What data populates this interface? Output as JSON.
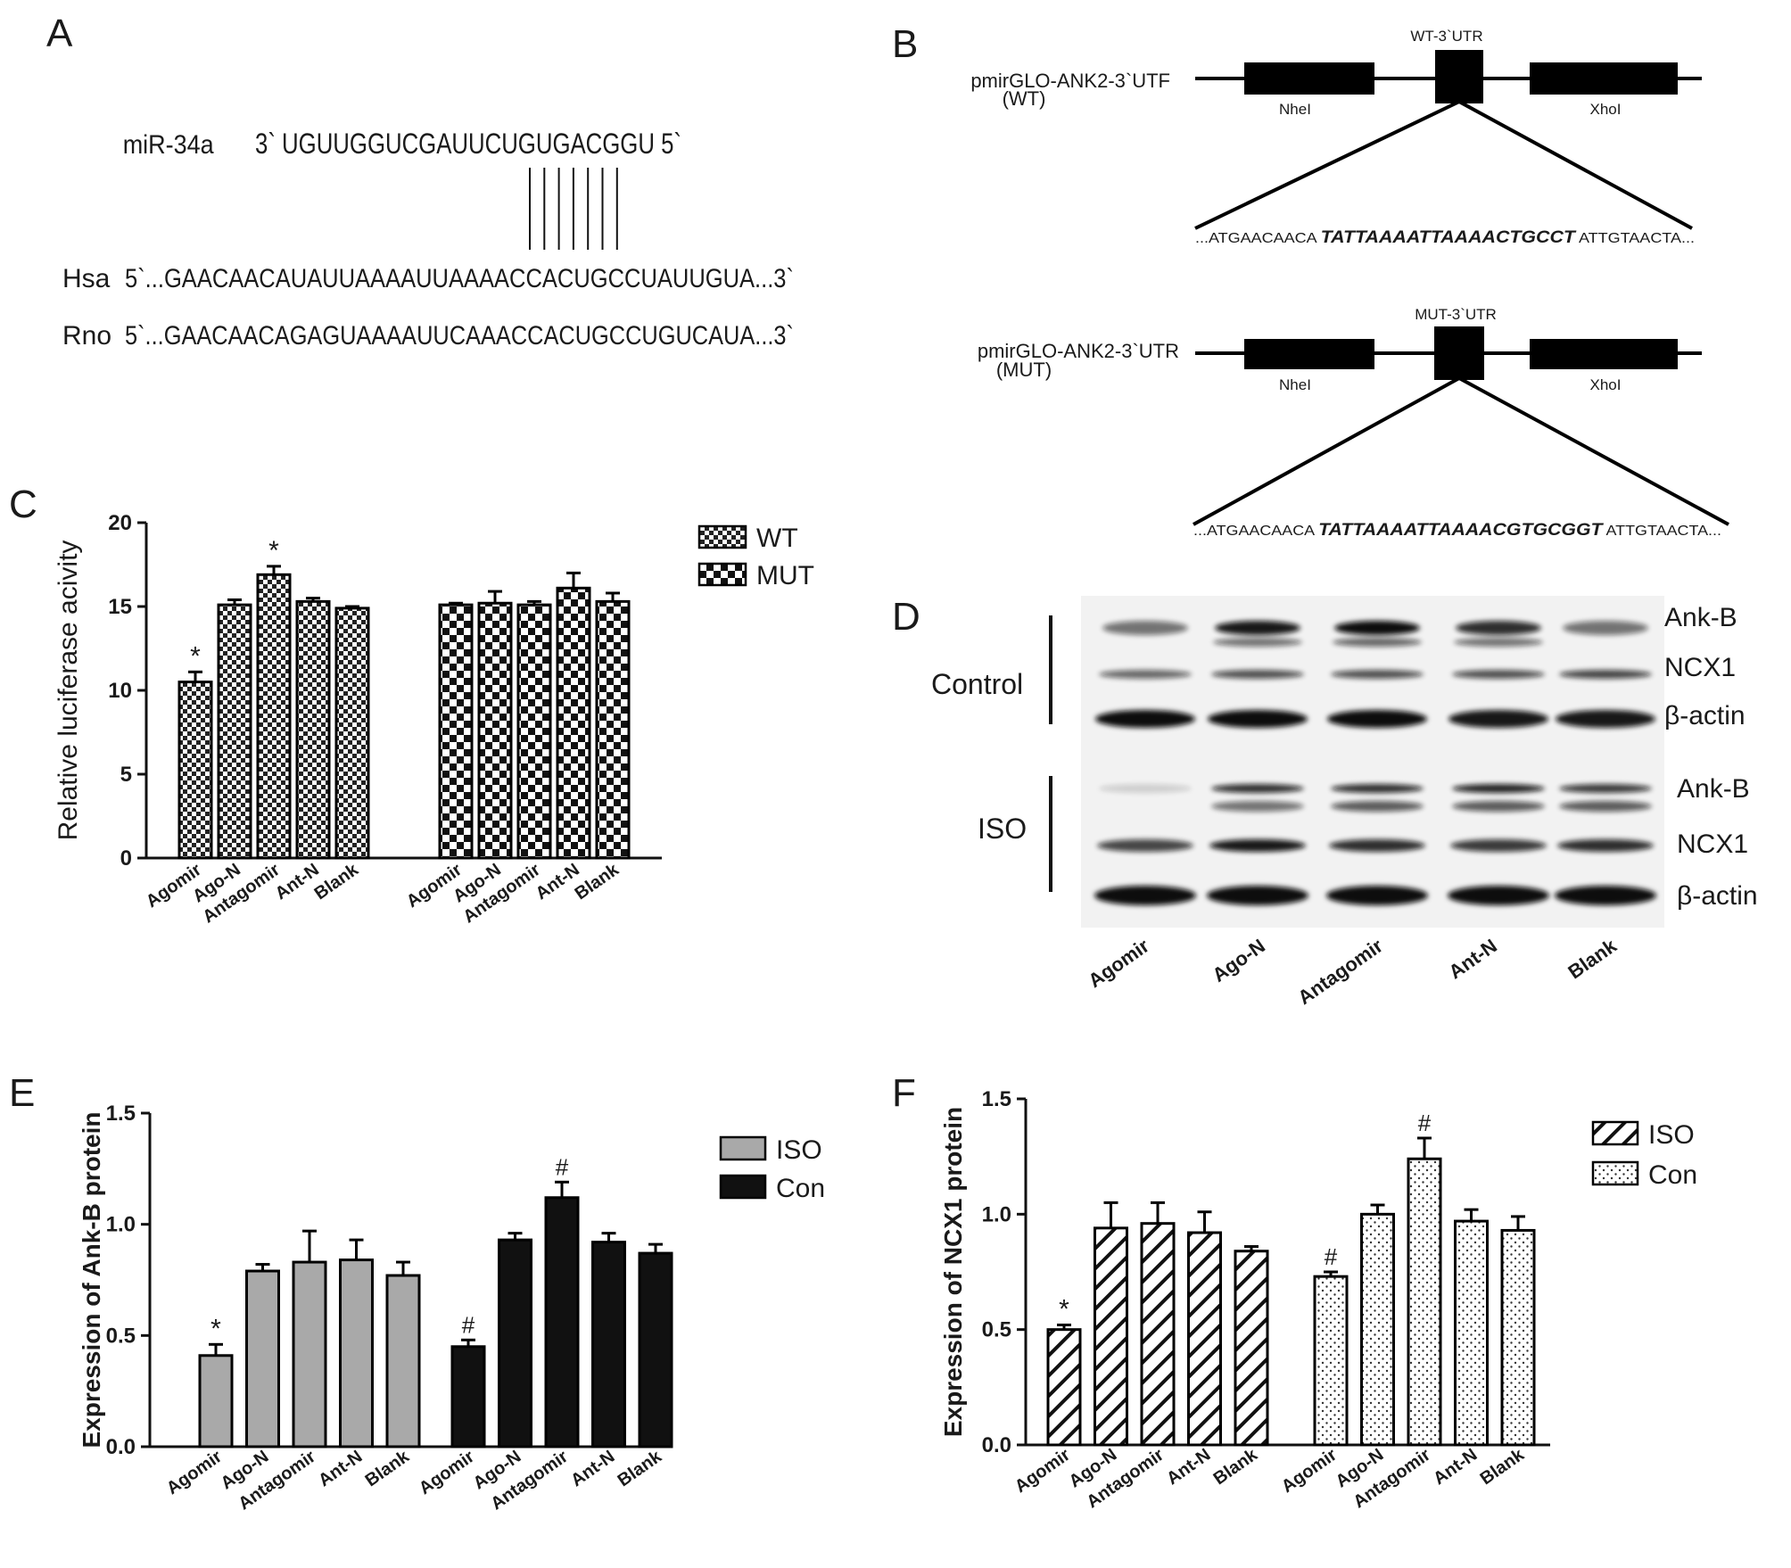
{
  "panel_labels": {
    "a": "A",
    "b": "B",
    "c": "C",
    "d": "D",
    "e": "E",
    "f": "F"
  },
  "panel_a": {
    "mir_label": "miR-34a",
    "mir_seq": "3` UGUUGGUCGAUUCUGUGACGGU 5`",
    "hsa_label": "Hsa",
    "hsa_seq": "5`...GAACAACAUAUUAAAAUUAAAACCACUGCCUAUUGUA...3`",
    "rno_label": "Rno",
    "rno_seq": "5`...GAACAACAGAGUAAAAUUCAAACCACUGCCUGUCAUA...3`",
    "pair_count": 7
  },
  "panel_b": {
    "wt": {
      "construct": "pmirGLO-ANK2-3`UTF",
      "variant": "(WT)",
      "utr_label": "WT-3`UTR",
      "left_site": "NheI",
      "right_site": "XhoI",
      "seq_prefix": "...ATGAACAACA ",
      "seq_core": "TATTAAAATTAAAACTGCCT",
      "seq_suffix": " ATTGTAACTA..."
    },
    "mut": {
      "construct": "pmirGLO-ANK2-3`UTR",
      "variant": "(MUT)",
      "utr_label": "MUT-3`UTR",
      "left_site": "NheI",
      "right_site": "XhoI",
      "seq_prefix": "...ATGAACAACA ",
      "seq_core": "TATTAAAATTAAAACGTGCGGT",
      "seq_suffix": " ATTGTAACTA..."
    }
  },
  "panel_d": {
    "groups": [
      "Control",
      "ISO"
    ],
    "bands": [
      "Ank-B",
      "NCX1",
      "β-actin"
    ],
    "lanes": [
      "Agomir",
      "Ago-N",
      "Antagomir",
      "Ant-N",
      "Blank"
    ]
  },
  "chart_data": [
    {
      "panel": "C",
      "type": "bar",
      "ylabel": "Relative luciferase acivity",
      "ylim": [
        0,
        20
      ],
      "yticks": [
        0,
        5,
        10,
        15,
        20
      ],
      "categories": [
        "Agomir",
        "Ago-N",
        "Antagomir",
        "Ant-N",
        "Blank"
      ],
      "legend_position": "top-right",
      "series": [
        {
          "name": "WT",
          "values": [
            10.5,
            15.1,
            16.9,
            15.3,
            14.9
          ],
          "errors": [
            0.6,
            0.3,
            0.5,
            0.2,
            0.1
          ],
          "marks": [
            "*",
            "",
            "*",
            "",
            ""
          ],
          "pattern": "fine-check",
          "color": "#000000"
        },
        {
          "name": "MUT",
          "values": [
            15.1,
            15.2,
            15.1,
            16.1,
            15.3
          ],
          "errors": [
            0.1,
            0.7,
            0.2,
            0.9,
            0.5
          ],
          "marks": [
            "",
            "",
            "",
            "",
            ""
          ],
          "pattern": "coarse-check",
          "color": "#000000"
        }
      ]
    },
    {
      "panel": "E",
      "type": "bar",
      "ylabel": "Expression of Ank-B protein",
      "ylim": [
        0,
        1.5
      ],
      "yticks": [
        0.0,
        0.5,
        1.0,
        1.5
      ],
      "categories": [
        "Agomir",
        "Ago-N",
        "Antagomir",
        "Ant-N",
        "Blank"
      ],
      "legend_position": "top-right",
      "series": [
        {
          "name": "ISO",
          "values": [
            0.41,
            0.79,
            0.83,
            0.84,
            0.77
          ],
          "errors": [
            0.05,
            0.03,
            0.14,
            0.09,
            0.06
          ],
          "marks": [
            "*",
            "",
            "",
            "",
            ""
          ],
          "pattern": "solid",
          "color": "#a9a9a9"
        },
        {
          "name": "Con",
          "values": [
            0.45,
            0.93,
            1.12,
            0.92,
            0.87
          ],
          "errors": [
            0.03,
            0.03,
            0.07,
            0.04,
            0.04
          ],
          "marks": [
            "#",
            "",
            "#",
            "",
            ""
          ],
          "pattern": "solid",
          "color": "#111111"
        }
      ]
    },
    {
      "panel": "F",
      "type": "bar",
      "ylabel": "Expression of NCX1 protein",
      "ylim": [
        0,
        1.5
      ],
      "yticks": [
        0.0,
        0.5,
        1.0,
        1.5
      ],
      "categories": [
        "Agomir",
        "Ago-N",
        "Antagomir",
        "Ant-N",
        "Blank"
      ],
      "legend_position": "top-right",
      "series": [
        {
          "name": "ISO",
          "values": [
            0.5,
            0.94,
            0.96,
            0.92,
            0.84
          ],
          "errors": [
            0.02,
            0.11,
            0.09,
            0.09,
            0.02
          ],
          "marks": [
            "*",
            "",
            "",
            "",
            ""
          ],
          "pattern": "diagonal",
          "color": "#000000"
        },
        {
          "name": "Con",
          "values": [
            0.73,
            1.0,
            1.24,
            0.97,
            0.93
          ],
          "errors": [
            0.02,
            0.04,
            0.09,
            0.05,
            0.06
          ],
          "marks": [
            "#",
            "",
            "#",
            "",
            ""
          ],
          "pattern": "dots",
          "color": "#000000"
        }
      ]
    }
  ]
}
